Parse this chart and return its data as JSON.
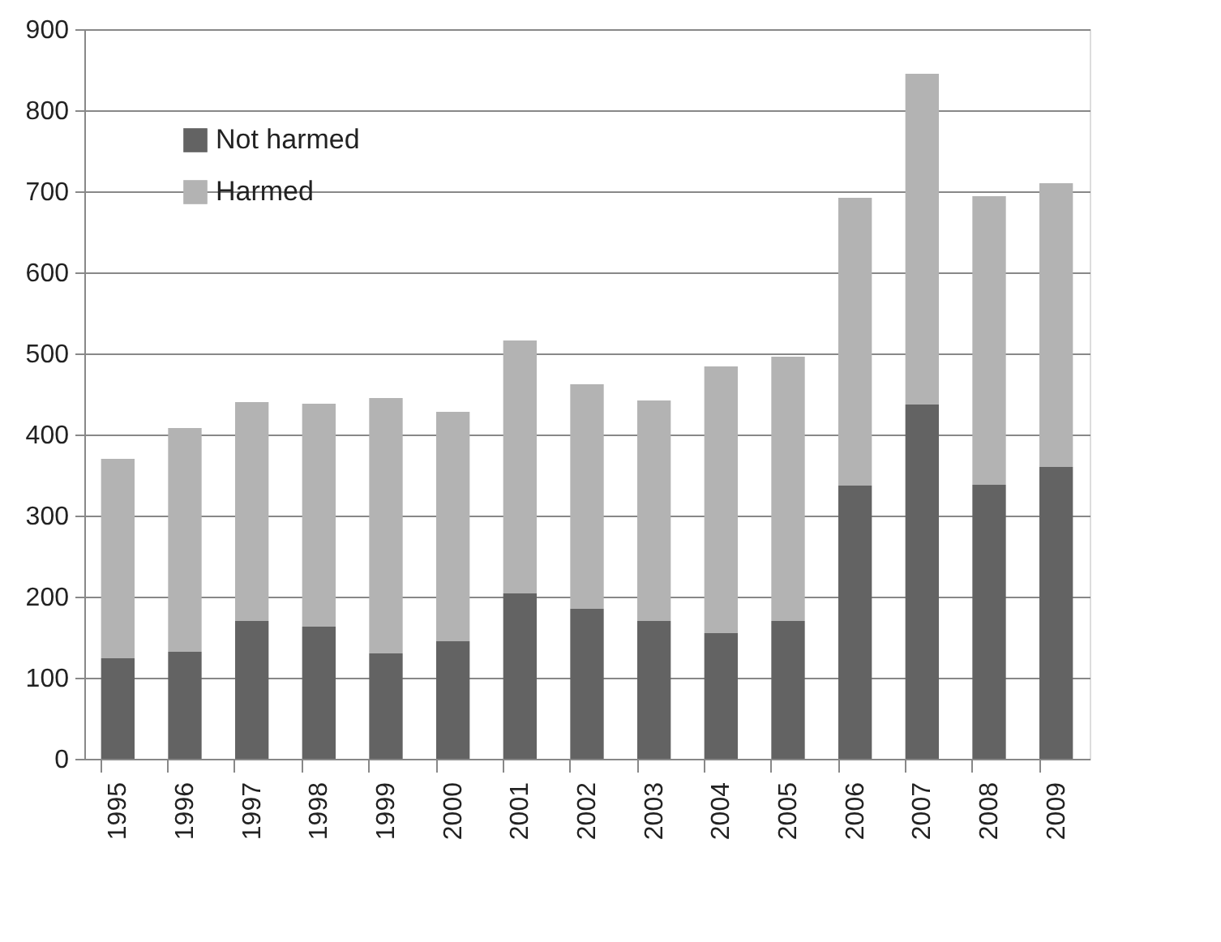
{
  "chart_data": {
    "type": "bar",
    "stacked": true,
    "categories": [
      "1995",
      "1996",
      "1997",
      "1998",
      "1999",
      "2000",
      "2001",
      "2002",
      "2003",
      "2004",
      "2005",
      "2006",
      "2007",
      "2008",
      "2009"
    ],
    "series": [
      {
        "name": "Not harmed",
        "color": "#636363",
        "values": [
          124,
          132,
          170,
          163,
          130,
          145,
          204,
          185,
          170,
          155,
          170,
          337,
          437,
          338,
          360
        ]
      },
      {
        "name": "Harmed",
        "color": "#b3b3b3",
        "values": [
          246,
          276,
          270,
          275,
          315,
          283,
          312,
          277,
          272,
          329,
          326,
          355,
          408,
          356,
          350
        ]
      }
    ],
    "ylim": [
      0,
      900
    ],
    "yticks": [
      0,
      100,
      200,
      300,
      400,
      500,
      600,
      700,
      800,
      900
    ],
    "grid": "y",
    "legend": "top left"
  }
}
